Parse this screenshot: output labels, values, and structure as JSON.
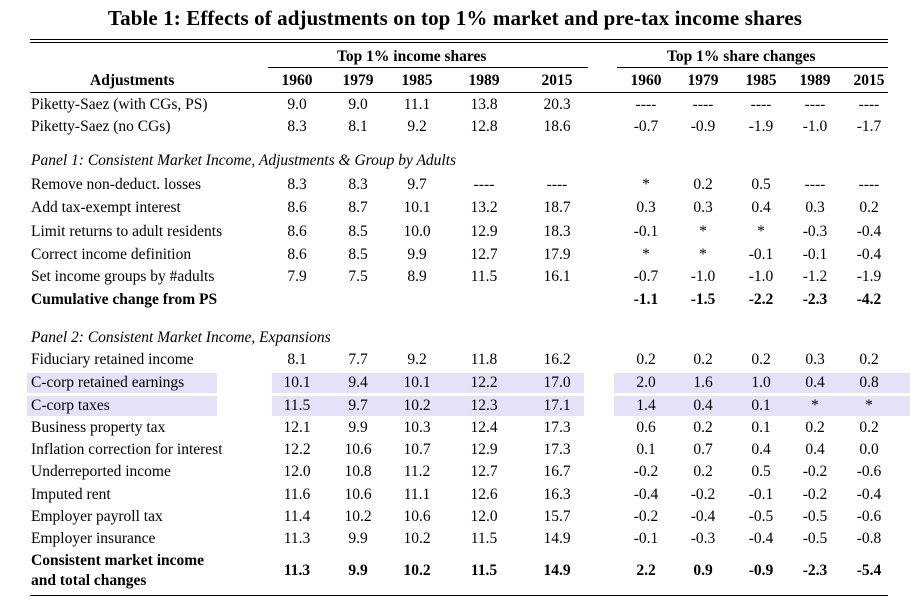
{
  "title": "Table 1: Effects of adjustments on top 1% market and pre-tax income shares",
  "group_headers": [
    "Top 1% income shares",
    "Top 1% share changes"
  ],
  "row_label_header": "Adjustments",
  "years": [
    "1960",
    "1979",
    "1985",
    "1989",
    "2015"
  ],
  "highlight_color": "#e4e2f8",
  "top_rows": [
    {
      "label": "Piketty-Saez (with CGs, PS)",
      "shares": [
        "9.0",
        "9.0",
        "11.1",
        "13.8",
        "20.3"
      ],
      "changes": [
        "----",
        "----",
        "----",
        "----",
        "----"
      ]
    },
    {
      "label": "Piketty-Saez (no CGs)",
      "shares": [
        "8.3",
        "8.1",
        "9.2",
        "12.8",
        "18.6"
      ],
      "changes": [
        "-0.7",
        "-0.9",
        "-1.9",
        "-1.0",
        "-1.7"
      ]
    }
  ],
  "panel1": {
    "title": "Panel 1: Consistent Market Income, Adjustments & Group by Adults",
    "rows": [
      {
        "label": "Remove non-deduct. losses",
        "shares": [
          "8.3",
          "8.3",
          "9.7",
          "----",
          "----"
        ],
        "changes": [
          "*",
          "0.2",
          "0.5",
          "----",
          "----"
        ]
      },
      {
        "label": "Add tax-exempt interest",
        "shares": [
          "8.6",
          "8.7",
          "10.1",
          "13.2",
          "18.7"
        ],
        "changes": [
          "0.3",
          "0.3",
          "0.4",
          "0.3",
          "0.2"
        ]
      },
      {
        "label": "Limit returns to adult residents",
        "shares": [
          "8.6",
          "8.5",
          "10.0",
          "12.9",
          "18.3"
        ],
        "changes": [
          "-0.1",
          "*",
          "*",
          "-0.3",
          "-0.4"
        ]
      },
      {
        "label": "Correct income definition",
        "shares": [
          "8.6",
          "8.5",
          "9.9",
          "12.7",
          "17.9"
        ],
        "changes": [
          "*",
          "*",
          "-0.1",
          "-0.1",
          "-0.4"
        ]
      },
      {
        "label": "Set income groups by #adults",
        "shares": [
          "7.9",
          "7.5",
          "8.9",
          "11.5",
          "16.1"
        ],
        "changes": [
          "-0.7",
          "-1.0",
          "-1.0",
          "-1.2",
          "-1.9"
        ]
      },
      {
        "label": "Cumulative change from PS",
        "shares": [
          "",
          "",
          "",
          "",
          ""
        ],
        "changes": [
          "-1.1",
          "-1.5",
          "-2.2",
          "-2.3",
          "-4.2"
        ],
        "bold": true
      }
    ]
  },
  "panel2": {
    "title": "Panel 2: Consistent Market Income, Expansions",
    "rows": [
      {
        "label": "Fiduciary retained income",
        "shares": [
          "8.1",
          "7.7",
          "9.2",
          "11.8",
          "16.2"
        ],
        "changes": [
          "0.2",
          "0.2",
          "0.2",
          "0.3",
          "0.2"
        ]
      },
      {
        "label": "C-corp retained earnings",
        "shares": [
          "10.1",
          "9.4",
          "10.1",
          "12.2",
          "17.0"
        ],
        "changes": [
          "2.0",
          "1.6",
          "1.0",
          "0.4",
          "0.8"
        ],
        "highlight": true
      },
      {
        "label": "C-corp taxes",
        "shares": [
          "11.5",
          "9.7",
          "10.2",
          "12.3",
          "17.1"
        ],
        "changes": [
          "1.4",
          "0.4",
          "0.1",
          "*",
          "*"
        ],
        "highlight": true
      },
      {
        "label": "Business property tax",
        "shares": [
          "12.1",
          "9.9",
          "10.3",
          "12.4",
          "17.3"
        ],
        "changes": [
          "0.6",
          "0.2",
          "0.1",
          "0.2",
          "0.2"
        ]
      },
      {
        "label": "Inflation correction for interest",
        "shares": [
          "12.2",
          "10.6",
          "10.7",
          "12.9",
          "17.3"
        ],
        "changes": [
          "0.1",
          "0.7",
          "0.4",
          "0.4",
          "0.0"
        ]
      },
      {
        "label": "Underreported income",
        "shares": [
          "12.0",
          "10.8",
          "11.2",
          "12.7",
          "16.7"
        ],
        "changes": [
          "-0.2",
          "0.2",
          "0.5",
          "-0.2",
          "-0.6"
        ]
      },
      {
        "label": "Imputed rent",
        "shares": [
          "11.6",
          "10.6",
          "11.1",
          "12.6",
          "16.3"
        ],
        "changes": [
          "-0.4",
          "-0.2",
          "-0.1",
          "-0.2",
          "-0.4"
        ]
      },
      {
        "label": "Employer payroll tax",
        "shares": [
          "11.4",
          "10.2",
          "10.6",
          "12.0",
          "15.7"
        ],
        "changes": [
          "-0.2",
          "-0.4",
          "-0.5",
          "-0.5",
          "-0.6"
        ]
      },
      {
        "label": "Employer insurance",
        "shares": [
          "11.3",
          "9.9",
          "10.2",
          "11.5",
          "14.9"
        ],
        "changes": [
          "-0.1",
          "-0.3",
          "-0.4",
          "-0.5",
          "-0.8"
        ]
      }
    ]
  },
  "final_row": {
    "label_line1": "Consistent market income",
    "label_line2": "and total changes",
    "shares": [
      "11.3",
      "9.9",
      "10.2",
      "11.5",
      "14.9"
    ],
    "changes": [
      "2.2",
      "0.9",
      "-0.9",
      "-2.3",
      "-5.4"
    ]
  }
}
